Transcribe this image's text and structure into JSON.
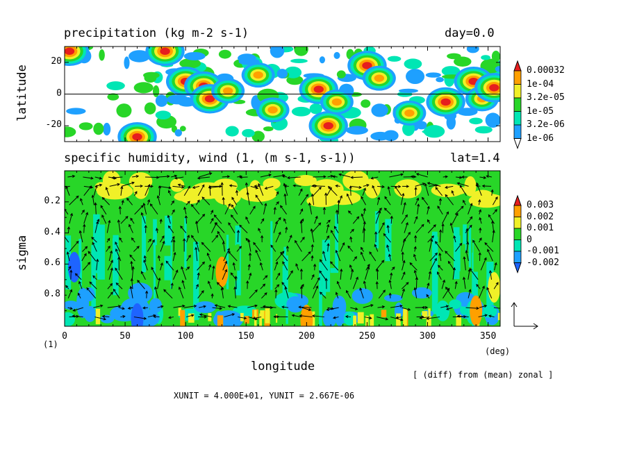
{
  "chart_data": [
    {
      "type": "heatmap",
      "title": "precipitation (kg m-2 s-1)",
      "time_label": "day=0.0",
      "ylabel": "latitude",
      "xlim": [
        0,
        360
      ],
      "ylim": [
        -30,
        30
      ],
      "x_ticks": [
        0,
        50,
        100,
        150,
        200,
        250,
        300,
        350
      ],
      "y_ticks": [
        "20",
        "0",
        "-20"
      ],
      "reference_line": 0,
      "colorbar": {
        "labels": [
          "0.00032",
          "1e-04",
          "3.2e-05",
          "1e-05",
          "3.2e-06",
          "1e-06"
        ],
        "levels": [
          1e-06,
          3.2e-06,
          1e-05,
          3.2e-05,
          0.0001,
          0.00032
        ],
        "colors": [
          "#ffffff",
          "#1ea0ff",
          "#00e6b4",
          "#28d628",
          "#f0f028",
          "#ffa000",
          "#e61e1e"
        ]
      },
      "cells": [
        {
          "lon": 4,
          "lat": 27,
          "level": 6
        },
        {
          "lon": 60,
          "lat": -27,
          "level": 6
        },
        {
          "lon": 83,
          "lat": 27,
          "level": 6
        },
        {
          "lon": 100,
          "lat": 8,
          "level": 6
        },
        {
          "lon": 115,
          "lat": 5,
          "level": 6
        },
        {
          "lon": 120,
          "lat": -3,
          "level": 6
        },
        {
          "lon": 135,
          "lat": 2,
          "level": 5
        },
        {
          "lon": 160,
          "lat": 12,
          "level": 5
        },
        {
          "lon": 172,
          "lat": -10,
          "level": 5
        },
        {
          "lon": 210,
          "lat": 3,
          "level": 6
        },
        {
          "lon": 218,
          "lat": -20,
          "level": 6
        },
        {
          "lon": 225,
          "lat": -5,
          "level": 5
        },
        {
          "lon": 250,
          "lat": 18,
          "level": 6
        },
        {
          "lon": 260,
          "lat": 10,
          "level": 5
        },
        {
          "lon": 285,
          "lat": -12,
          "level": 5
        },
        {
          "lon": 315,
          "lat": -5,
          "level": 6
        },
        {
          "lon": 338,
          "lat": 8,
          "level": 6
        },
        {
          "lon": 345,
          "lat": -3,
          "level": 5
        },
        {
          "lon": 355,
          "lat": 4,
          "level": 6
        }
      ]
    },
    {
      "type": "heatmap",
      "title": "specific humidity, wind (1, (m s-1, s-1))",
      "lat_label": "lat=1.4",
      "xlabel": "longitude",
      "ylabel": "sigma",
      "x_unit_label": "(deg)",
      "y_unit_label": "(1)",
      "xlim": [
        0,
        360
      ],
      "ylim": [
        1.0,
        0.0
      ],
      "x_ticks": [
        0,
        50,
        100,
        150,
        200,
        250,
        300,
        350
      ],
      "y_ticks": [
        0.2,
        0.4,
        0.6,
        0.8
      ],
      "colorbar": {
        "labels": [
          "0.003",
          "0.002",
          "0.001",
          "0",
          "-0.001",
          "-0.002"
        ],
        "levels": [
          -0.002,
          -0.001,
          0,
          0.001,
          0.002,
          0.003
        ],
        "colors": [
          "#1e64ff",
          "#1ea0ff",
          "#00e6b4",
          "#28d628",
          "#f0f028",
          "#ffa000",
          "#e61e1e"
        ]
      },
      "anomaly_patches": [
        {
          "lon": 8,
          "sigma": 0.62,
          "value": -0.0022
        },
        {
          "lon": 15,
          "sigma": 0.85,
          "value": -0.0015
        },
        {
          "lon": 60,
          "sigma": 0.95,
          "value": -0.0021
        },
        {
          "lon": 130,
          "sigma": 0.65,
          "value": 0.0021
        },
        {
          "lon": 200,
          "sigma": 0.96,
          "value": 0.0022
        },
        {
          "lon": 340,
          "sigma": 0.9,
          "value": 0.0022
        },
        {
          "lon": 355,
          "sigma": 0.75,
          "value": 0.0018
        }
      ],
      "vector_units": "XUNIT = 4.000E+01, YUNIT = 2.667E-06",
      "note": "[ (diff) from (mean) zonal ]"
    }
  ]
}
